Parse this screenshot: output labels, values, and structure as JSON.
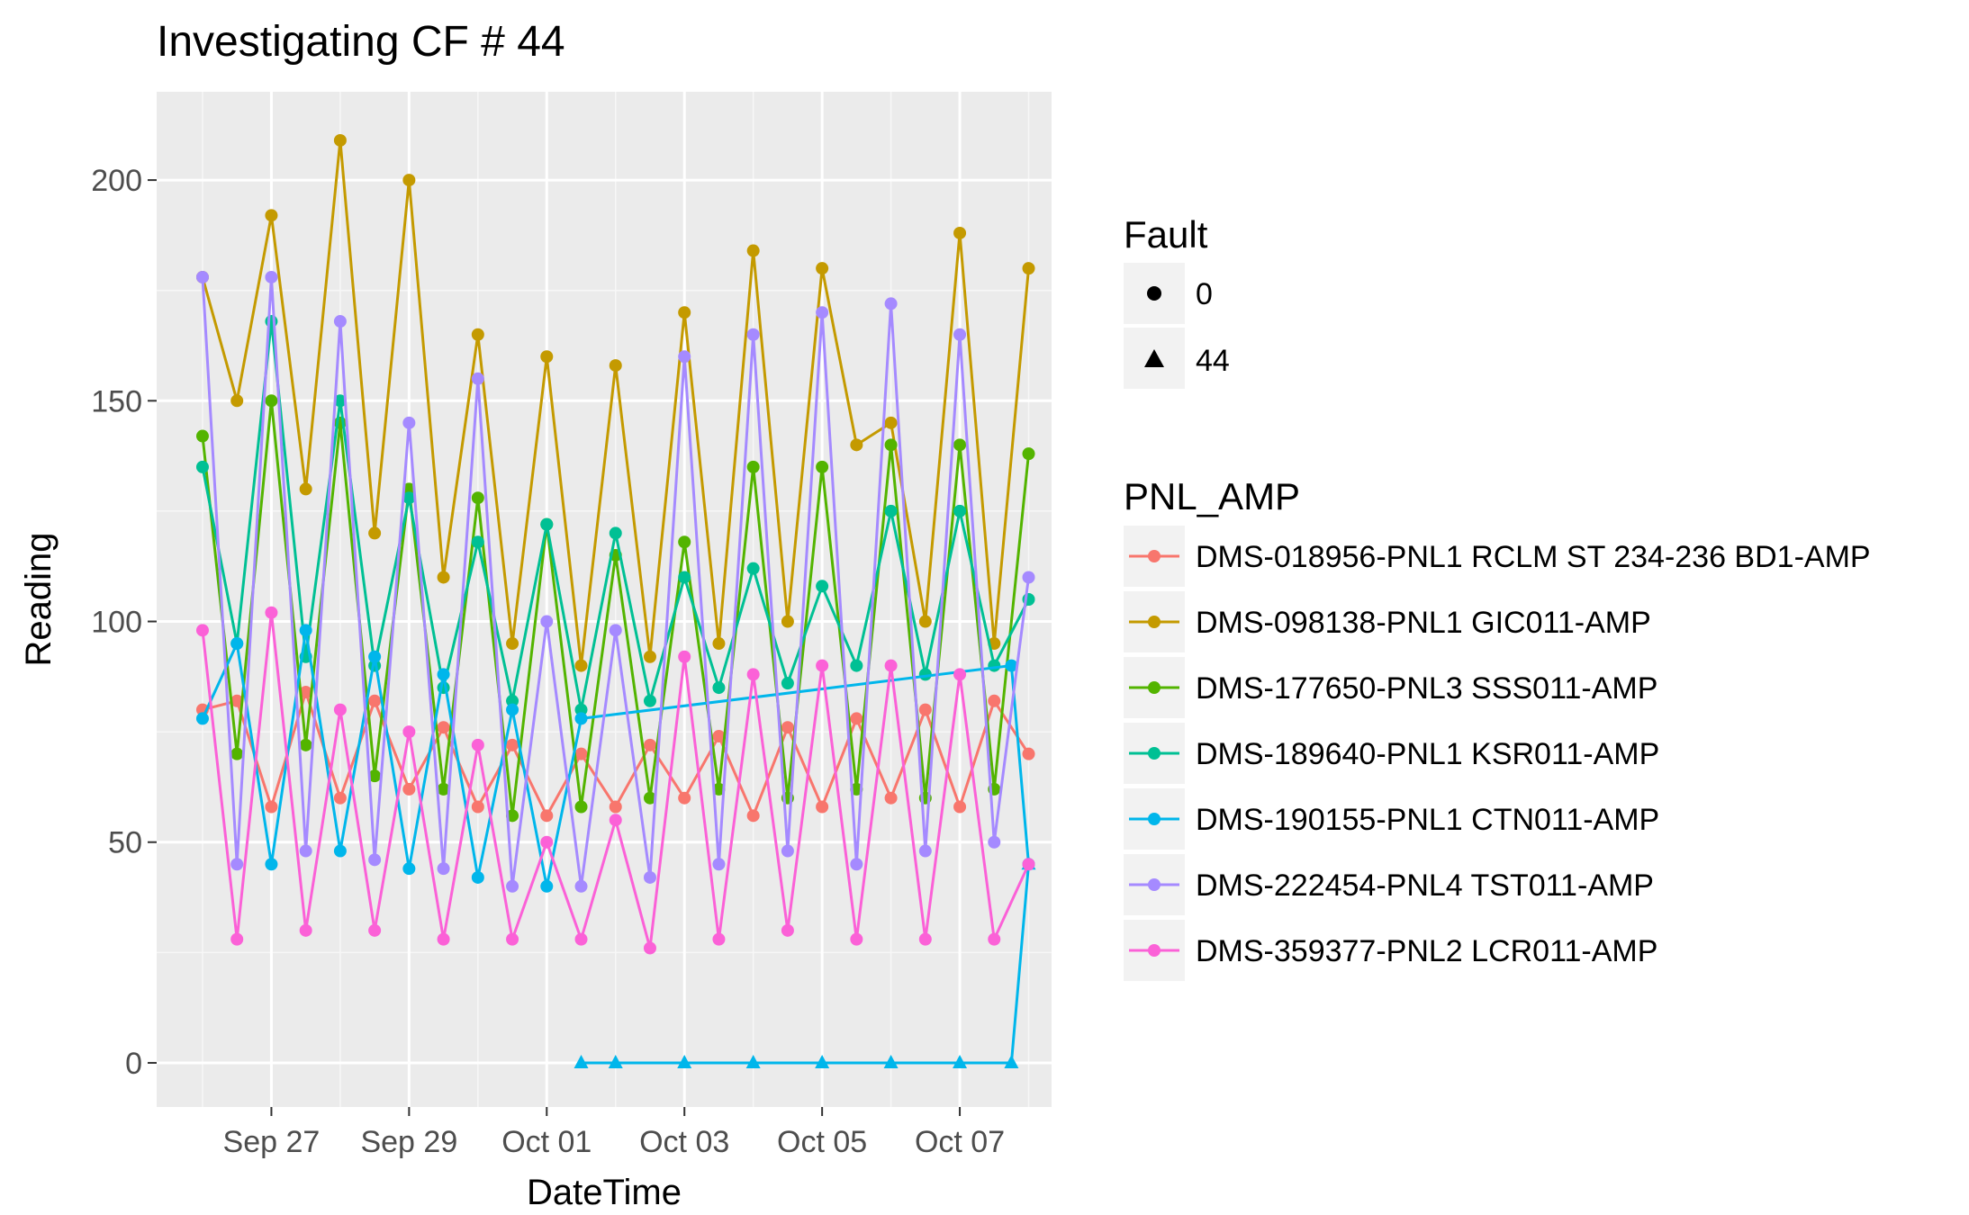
{
  "chart_data": {
    "type": "line",
    "title": "Investigating CF # 44",
    "xlabel": "DateTime",
    "ylabel": "Reading",
    "x_ticks": [
      "Sep 27",
      "Sep 29",
      "Oct 01",
      "Oct 03",
      "Oct 05",
      "Oct 07"
    ],
    "y_ticks": [
      "0",
      "50",
      "100",
      "150",
      "200"
    ],
    "xlim": [
      "2016-09-25T08:00",
      "2016-10-08T08:00"
    ],
    "ylim": [
      -10,
      220
    ],
    "grid": true,
    "legend_position": "right",
    "shape_legend": {
      "title": "Fault",
      "entries": [
        {
          "label": "0",
          "shape": "circle"
        },
        {
          "label": "44",
          "shape": "triangle"
        }
      ]
    },
    "color_legend": {
      "title": "PNL_AMP",
      "entries": [
        "DMS-018956-PNL1 RCLM ST 234-236 BD1-AMP",
        "DMS-098138-PNL1 GIC011-AMP",
        "DMS-177650-PNL3 SSS011-AMP",
        "DMS-189640-PNL1 KSR011-AMP",
        "DMS-190155-PNL1 CTN011-AMP",
        "DMS-222454-PNL4 TST011-AMP",
        "DMS-359377-PNL2 LCR011-AMP"
      ]
    },
    "series": [
      {
        "name": "DMS-018956-PNL1 RCLM ST 234-236 BD1-AMP",
        "color": "#F8766D",
        "fault": "0",
        "x": [
          "2016-09-26T00:00",
          "2016-09-26T12:00",
          "2016-09-27T00:00",
          "2016-09-27T12:00",
          "2016-09-28T00:00",
          "2016-09-28T12:00",
          "2016-09-29T00:00",
          "2016-09-29T12:00",
          "2016-09-30T00:00",
          "2016-09-30T12:00",
          "2016-10-01T00:00",
          "2016-10-01T12:00",
          "2016-10-02T00:00",
          "2016-10-02T12:00",
          "2016-10-03T00:00",
          "2016-10-03T12:00",
          "2016-10-04T00:00",
          "2016-10-04T12:00",
          "2016-10-05T00:00",
          "2016-10-05T12:00",
          "2016-10-06T00:00",
          "2016-10-06T12:00",
          "2016-10-07T00:00",
          "2016-10-07T12:00",
          "2016-10-08T00:00"
        ],
        "values": [
          80,
          82,
          58,
          84,
          60,
          82,
          62,
          76,
          58,
          72,
          56,
          70,
          58,
          72,
          60,
          74,
          56,
          76,
          58,
          78,
          60,
          80,
          58,
          82,
          70
        ]
      },
      {
        "name": "DMS-098138-PNL1 GIC011-AMP",
        "color": "#C49A00",
        "fault": "0",
        "x": [
          "2016-09-26T00:00",
          "2016-09-26T12:00",
          "2016-09-27T00:00",
          "2016-09-27T12:00",
          "2016-09-28T00:00",
          "2016-09-28T12:00",
          "2016-09-29T00:00",
          "2016-09-29T12:00",
          "2016-09-30T00:00",
          "2016-09-30T12:00",
          "2016-10-01T00:00",
          "2016-10-01T12:00",
          "2016-10-02T00:00",
          "2016-10-02T12:00",
          "2016-10-03T00:00",
          "2016-10-03T12:00",
          "2016-10-04T00:00",
          "2016-10-04T12:00",
          "2016-10-05T00:00",
          "2016-10-05T12:00",
          "2016-10-06T00:00",
          "2016-10-06T12:00",
          "2016-10-07T00:00",
          "2016-10-07T12:00",
          "2016-10-08T00:00"
        ],
        "values": [
          178,
          150,
          192,
          130,
          209,
          120,
          200,
          110,
          165,
          95,
          160,
          90,
          158,
          92,
          170,
          95,
          184,
          100,
          180,
          140,
          145,
          100,
          188,
          95,
          180
        ]
      },
      {
        "name": "DMS-177650-PNL3 SSS011-AMP",
        "color": "#53B400",
        "fault": "0",
        "x": [
          "2016-09-26T00:00",
          "2016-09-26T12:00",
          "2016-09-27T00:00",
          "2016-09-27T12:00",
          "2016-09-28T00:00",
          "2016-09-28T12:00",
          "2016-09-29T00:00",
          "2016-09-29T12:00",
          "2016-09-30T00:00",
          "2016-09-30T12:00",
          "2016-10-01T00:00",
          "2016-10-01T12:00",
          "2016-10-02T00:00",
          "2016-10-02T12:00",
          "2016-10-03T00:00",
          "2016-10-03T12:00",
          "2016-10-04T00:00",
          "2016-10-04T12:00",
          "2016-10-05T00:00",
          "2016-10-05T12:00",
          "2016-10-06T00:00",
          "2016-10-06T12:00",
          "2016-10-07T00:00",
          "2016-10-07T12:00",
          "2016-10-08T00:00"
        ],
        "values": [
          142,
          70,
          150,
          72,
          145,
          65,
          130,
          62,
          128,
          56,
          122,
          58,
          115,
          60,
          118,
          62,
          135,
          60,
          135,
          62,
          140,
          60,
          140,
          62,
          138
        ]
      },
      {
        "name": "DMS-189640-PNL1 KSR011-AMP",
        "color": "#00C094",
        "fault": "0",
        "x": [
          "2016-09-26T00:00",
          "2016-09-26T12:00",
          "2016-09-27T00:00",
          "2016-09-27T12:00",
          "2016-09-28T00:00",
          "2016-09-28T12:00",
          "2016-09-29T00:00",
          "2016-09-29T12:00",
          "2016-09-30T00:00",
          "2016-09-30T12:00",
          "2016-10-01T00:00",
          "2016-10-01T12:00",
          "2016-10-02T00:00",
          "2016-10-02T12:00",
          "2016-10-03T00:00",
          "2016-10-03T12:00",
          "2016-10-04T00:00",
          "2016-10-04T12:00",
          "2016-10-05T00:00",
          "2016-10-05T12:00",
          "2016-10-06T00:00",
          "2016-10-06T12:00",
          "2016-10-07T00:00",
          "2016-10-07T12:00",
          "2016-10-08T00:00"
        ],
        "values": [
          135,
          95,
          168,
          92,
          150,
          90,
          128,
          85,
          118,
          82,
          122,
          80,
          120,
          82,
          110,
          85,
          112,
          86,
          108,
          90,
          125,
          88,
          125,
          90,
          105
        ]
      },
      {
        "name": "DMS-190155-PNL1 CTN011-AMP",
        "color": "#00B6EB",
        "fault": "0",
        "x": [
          "2016-09-26T00:00",
          "2016-09-26T12:00",
          "2016-09-27T00:00",
          "2016-09-27T12:00",
          "2016-09-28T00:00",
          "2016-09-28T12:00",
          "2016-09-29T00:00",
          "2016-09-29T12:00",
          "2016-09-30T00:00",
          "2016-09-30T12:00",
          "2016-10-01T00:00",
          "2016-10-01T12:00",
          "2016-10-07T18:00",
          "2016-10-08T00:00"
        ],
        "values": [
          78,
          95,
          45,
          98,
          48,
          92,
          44,
          88,
          42,
          80,
          40,
          78,
          90,
          45
        ]
      },
      {
        "name": "DMS-190155-PNL1 CTN011-AMP",
        "color": "#00B6EB",
        "fault": "44",
        "x": [
          "2016-10-01T12:00",
          "2016-10-02T00:00",
          "2016-10-03T00:00",
          "2016-10-04T00:00",
          "2016-10-05T00:00",
          "2016-10-06T00:00",
          "2016-10-07T00:00",
          "2016-10-07T18:00",
          "2016-10-08T00:00"
        ],
        "values": [
          0,
          0,
          0,
          0,
          0,
          0,
          0,
          0,
          45
        ]
      },
      {
        "name": "DMS-222454-PNL4 TST011-AMP",
        "color": "#A58AFF",
        "fault": "0",
        "x": [
          "2016-09-26T00:00",
          "2016-09-26T12:00",
          "2016-09-27T00:00",
          "2016-09-27T12:00",
          "2016-09-28T00:00",
          "2016-09-28T12:00",
          "2016-09-29T00:00",
          "2016-09-29T12:00",
          "2016-09-30T00:00",
          "2016-09-30T12:00",
          "2016-10-01T00:00",
          "2016-10-01T12:00",
          "2016-10-02T00:00",
          "2016-10-02T12:00",
          "2016-10-03T00:00",
          "2016-10-03T12:00",
          "2016-10-04T00:00",
          "2016-10-04T12:00",
          "2016-10-05T00:00",
          "2016-10-05T12:00",
          "2016-10-06T00:00",
          "2016-10-06T12:00",
          "2016-10-07T00:00",
          "2016-10-07T12:00",
          "2016-10-08T00:00"
        ],
        "values": [
          178,
          45,
          178,
          48,
          168,
          46,
          145,
          44,
          155,
          40,
          100,
          40,
          98,
          42,
          160,
          45,
          165,
          48,
          170,
          45,
          172,
          48,
          165,
          50,
          110
        ]
      },
      {
        "name": "DMS-359377-PNL2 LCR011-AMP",
        "color": "#FB61D7",
        "fault": "0",
        "x": [
          "2016-09-26T00:00",
          "2016-09-26T12:00",
          "2016-09-27T00:00",
          "2016-09-27T12:00",
          "2016-09-28T00:00",
          "2016-09-28T12:00",
          "2016-09-29T00:00",
          "2016-09-29T12:00",
          "2016-09-30T00:00",
          "2016-09-30T12:00",
          "2016-10-01T00:00",
          "2016-10-01T12:00",
          "2016-10-02T00:00",
          "2016-10-02T12:00",
          "2016-10-03T00:00",
          "2016-10-03T12:00",
          "2016-10-04T00:00",
          "2016-10-04T12:00",
          "2016-10-05T00:00",
          "2016-10-05T12:00",
          "2016-10-06T00:00",
          "2016-10-06T12:00",
          "2016-10-07T00:00",
          "2016-10-07T12:00",
          "2016-10-08T00:00"
        ],
        "values": [
          98,
          28,
          102,
          30,
          80,
          30,
          75,
          28,
          72,
          28,
          50,
          28,
          55,
          26,
          92,
          28,
          88,
          30,
          90,
          28,
          90,
          28,
          88,
          28,
          45
        ]
      }
    ]
  }
}
